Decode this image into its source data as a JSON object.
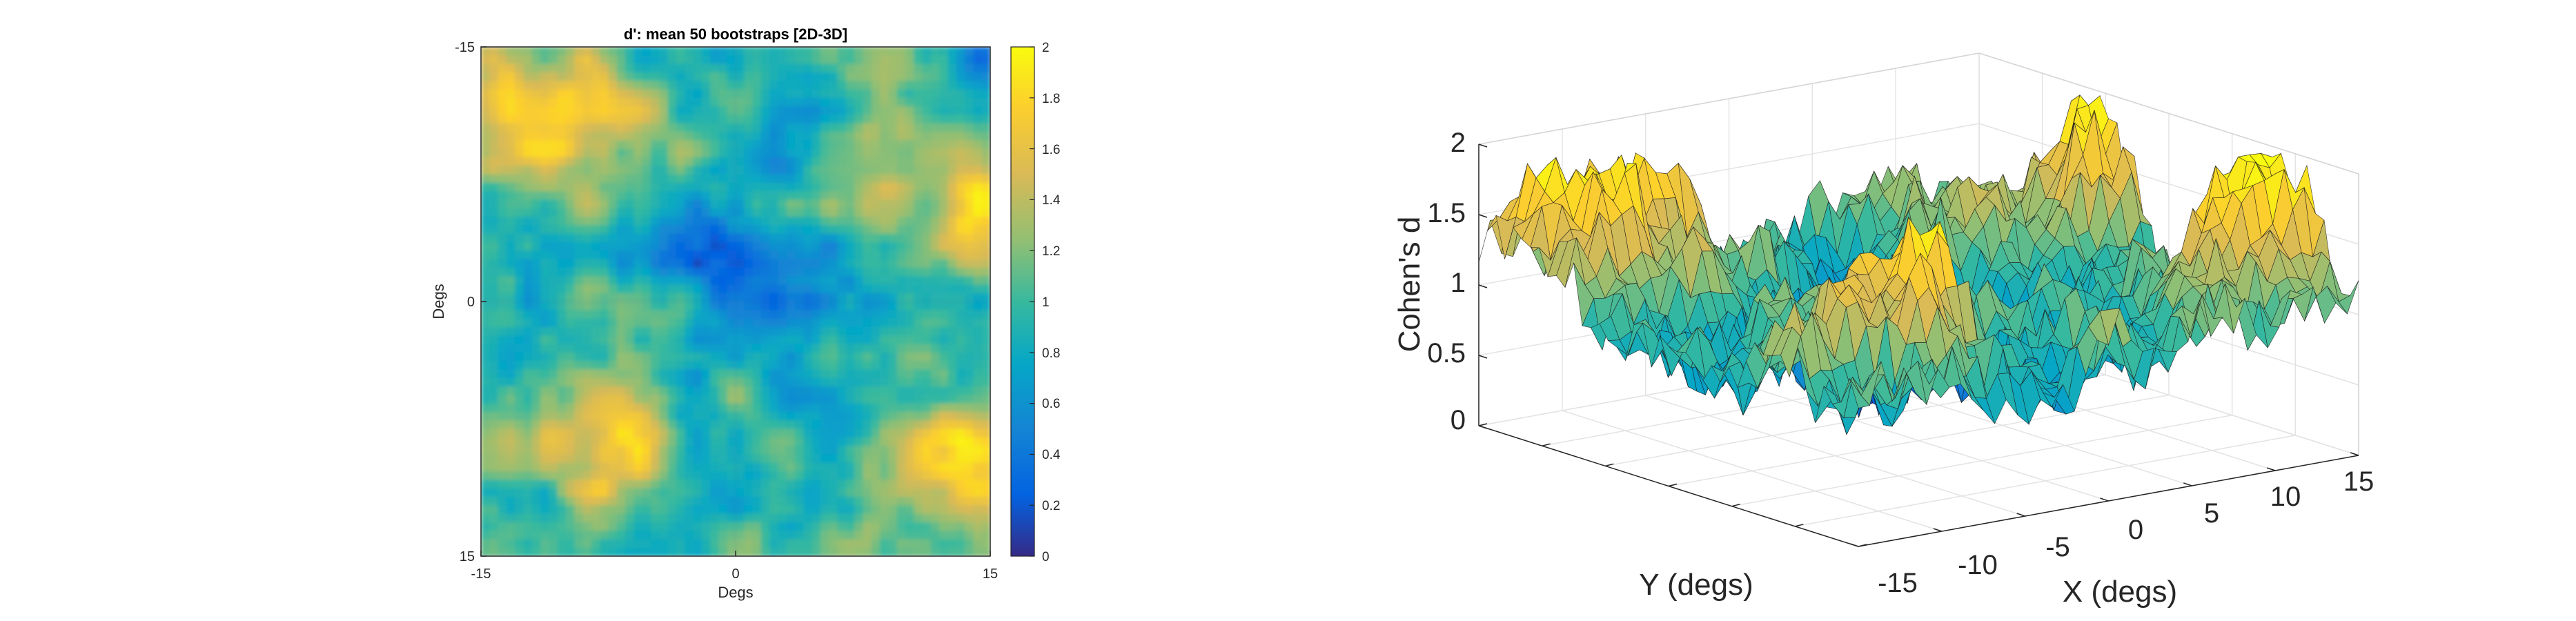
{
  "chart_data": [
    {
      "type": "heatmap",
      "title": "d': mean 50 bootstraps [2D-3D]",
      "xlabel": "Degs",
      "ylabel": "Degs",
      "xlim": [
        -15,
        15
      ],
      "ylim": [
        -15,
        15
      ],
      "y_direction": "reversed",
      "xticks": [
        "-15",
        "0",
        "15"
      ],
      "yticks": [
        "-15",
        "0",
        "15"
      ],
      "colorbar": {
        "min": 0,
        "max": 2,
        "ticks": [
          "0",
          "0.2",
          "0.4",
          "0.6",
          "0.8",
          "1",
          "1.2",
          "1.4",
          "1.6",
          "1.8",
          "2"
        ]
      },
      "colormap": "parula",
      "approx_field": {
        "baseline": 0.9,
        "description_values": [
          {
            "x": 0,
            "y": -3,
            "value": 0.5
          },
          {
            "x": -10,
            "y": -11,
            "value": 1.7
          },
          {
            "x": 13,
            "y": -6,
            "value": 1.6
          },
          {
            "x": -7,
            "y": 8,
            "value": 1.7
          },
          {
            "x": 13,
            "y": 9,
            "value": 1.5
          },
          {
            "x": 14,
            "y": -14,
            "value": 0.5
          }
        ]
      }
    },
    {
      "type": "surface",
      "zlabel": "Cohen's d",
      "xlabel": "X (degs)",
      "ylabel": "Y (degs)",
      "zlim": [
        0,
        2
      ],
      "zticks": [
        "0",
        "0.5",
        "1",
        "1.5",
        "2"
      ],
      "xticks": [
        "-15",
        "-10",
        "-5",
        "0",
        "5",
        "10",
        "15"
      ],
      "grid": true,
      "colormap": "parula"
    }
  ]
}
